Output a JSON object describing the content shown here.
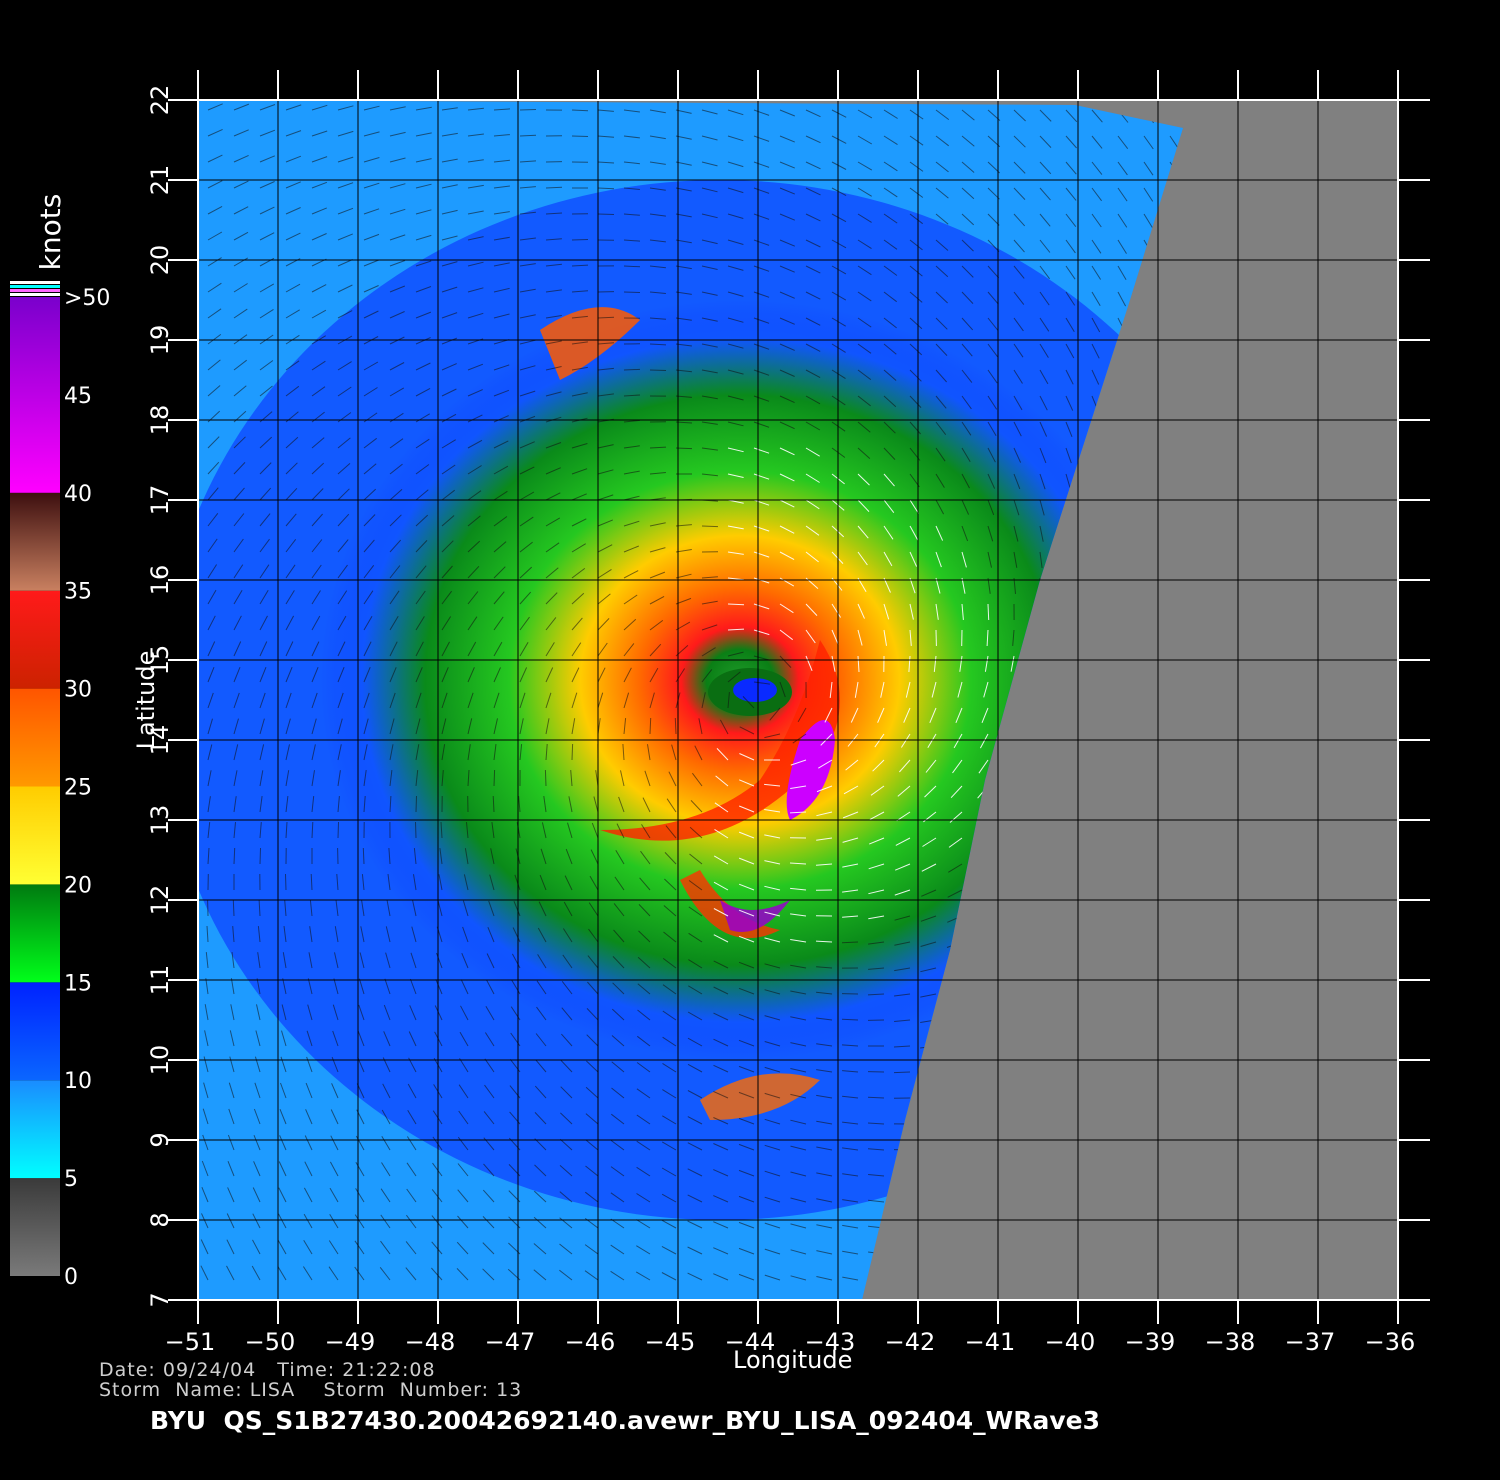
{
  "colorbar": {
    "unit": "knots",
    "tick_labels": [
      "0",
      "5",
      "10",
      "15",
      "20",
      "25",
      "30",
      "35",
      "40",
      "45",
      ">50"
    ],
    "bands": [
      {
        "from": 0,
        "to": 5,
        "color_top": "#3a3a3a",
        "color_bottom": "#7a7a7a"
      },
      {
        "from": 5,
        "to": 10,
        "color_top": "#1a8cff",
        "color_bottom": "#00ffff"
      },
      {
        "from": 10,
        "to": 15,
        "color_top": "#0022ff",
        "color_bottom": "#0a66ff"
      },
      {
        "from": 15,
        "to": 20,
        "color_top": "#007a10",
        "color_bottom": "#00ff1a"
      },
      {
        "from": 20,
        "to": 25,
        "color_top": "#ffcc00",
        "color_bottom": "#ffff33"
      },
      {
        "from": 25,
        "to": 30,
        "color_top": "#ff5500",
        "color_bottom": "#ff9900"
      },
      {
        "from": 30,
        "to": 35,
        "color_top": "#ff1a1a",
        "color_bottom": "#cc2200"
      },
      {
        "from": 35,
        "to": 40,
        "color_top": "#3d0f0f",
        "color_bottom": "#c98060"
      },
      {
        "from": 40,
        "to": 50,
        "color_top": "#7a00cc",
        "color_bottom": "#ff00ff"
      }
    ]
  },
  "map": {
    "x_axis_label": "Longitude",
    "y_axis_label": "Latitude",
    "lon_ticks": [
      "−51",
      "−50",
      "−49",
      "−48",
      "−47",
      "−46",
      "−45",
      "−44",
      "−43",
      "−42",
      "−41",
      "−40",
      "−39",
      "−38",
      "−37",
      "−36"
    ],
    "lat_ticks": [
      "7",
      "8",
      "9",
      "10",
      "11",
      "12",
      "13",
      "14",
      "15",
      "16",
      "17",
      "18",
      "19",
      "20",
      "21",
      "22"
    ],
    "lon_range": [
      -51,
      -36
    ],
    "lat_range": [
      7,
      22
    ],
    "no_data_color": "#808080",
    "storm_center": {
      "lon": -44,
      "lat": 14.5
    }
  },
  "metadata": {
    "date_line": "Date: 09/24/04   Time: 21:22:08",
    "storm_line": "Storm  Name: LISA    Storm  Number: 13",
    "filename": "BYU  QS_S1B27430.20042692140.avewr_BYU_LISA_092404_WRave3"
  }
}
